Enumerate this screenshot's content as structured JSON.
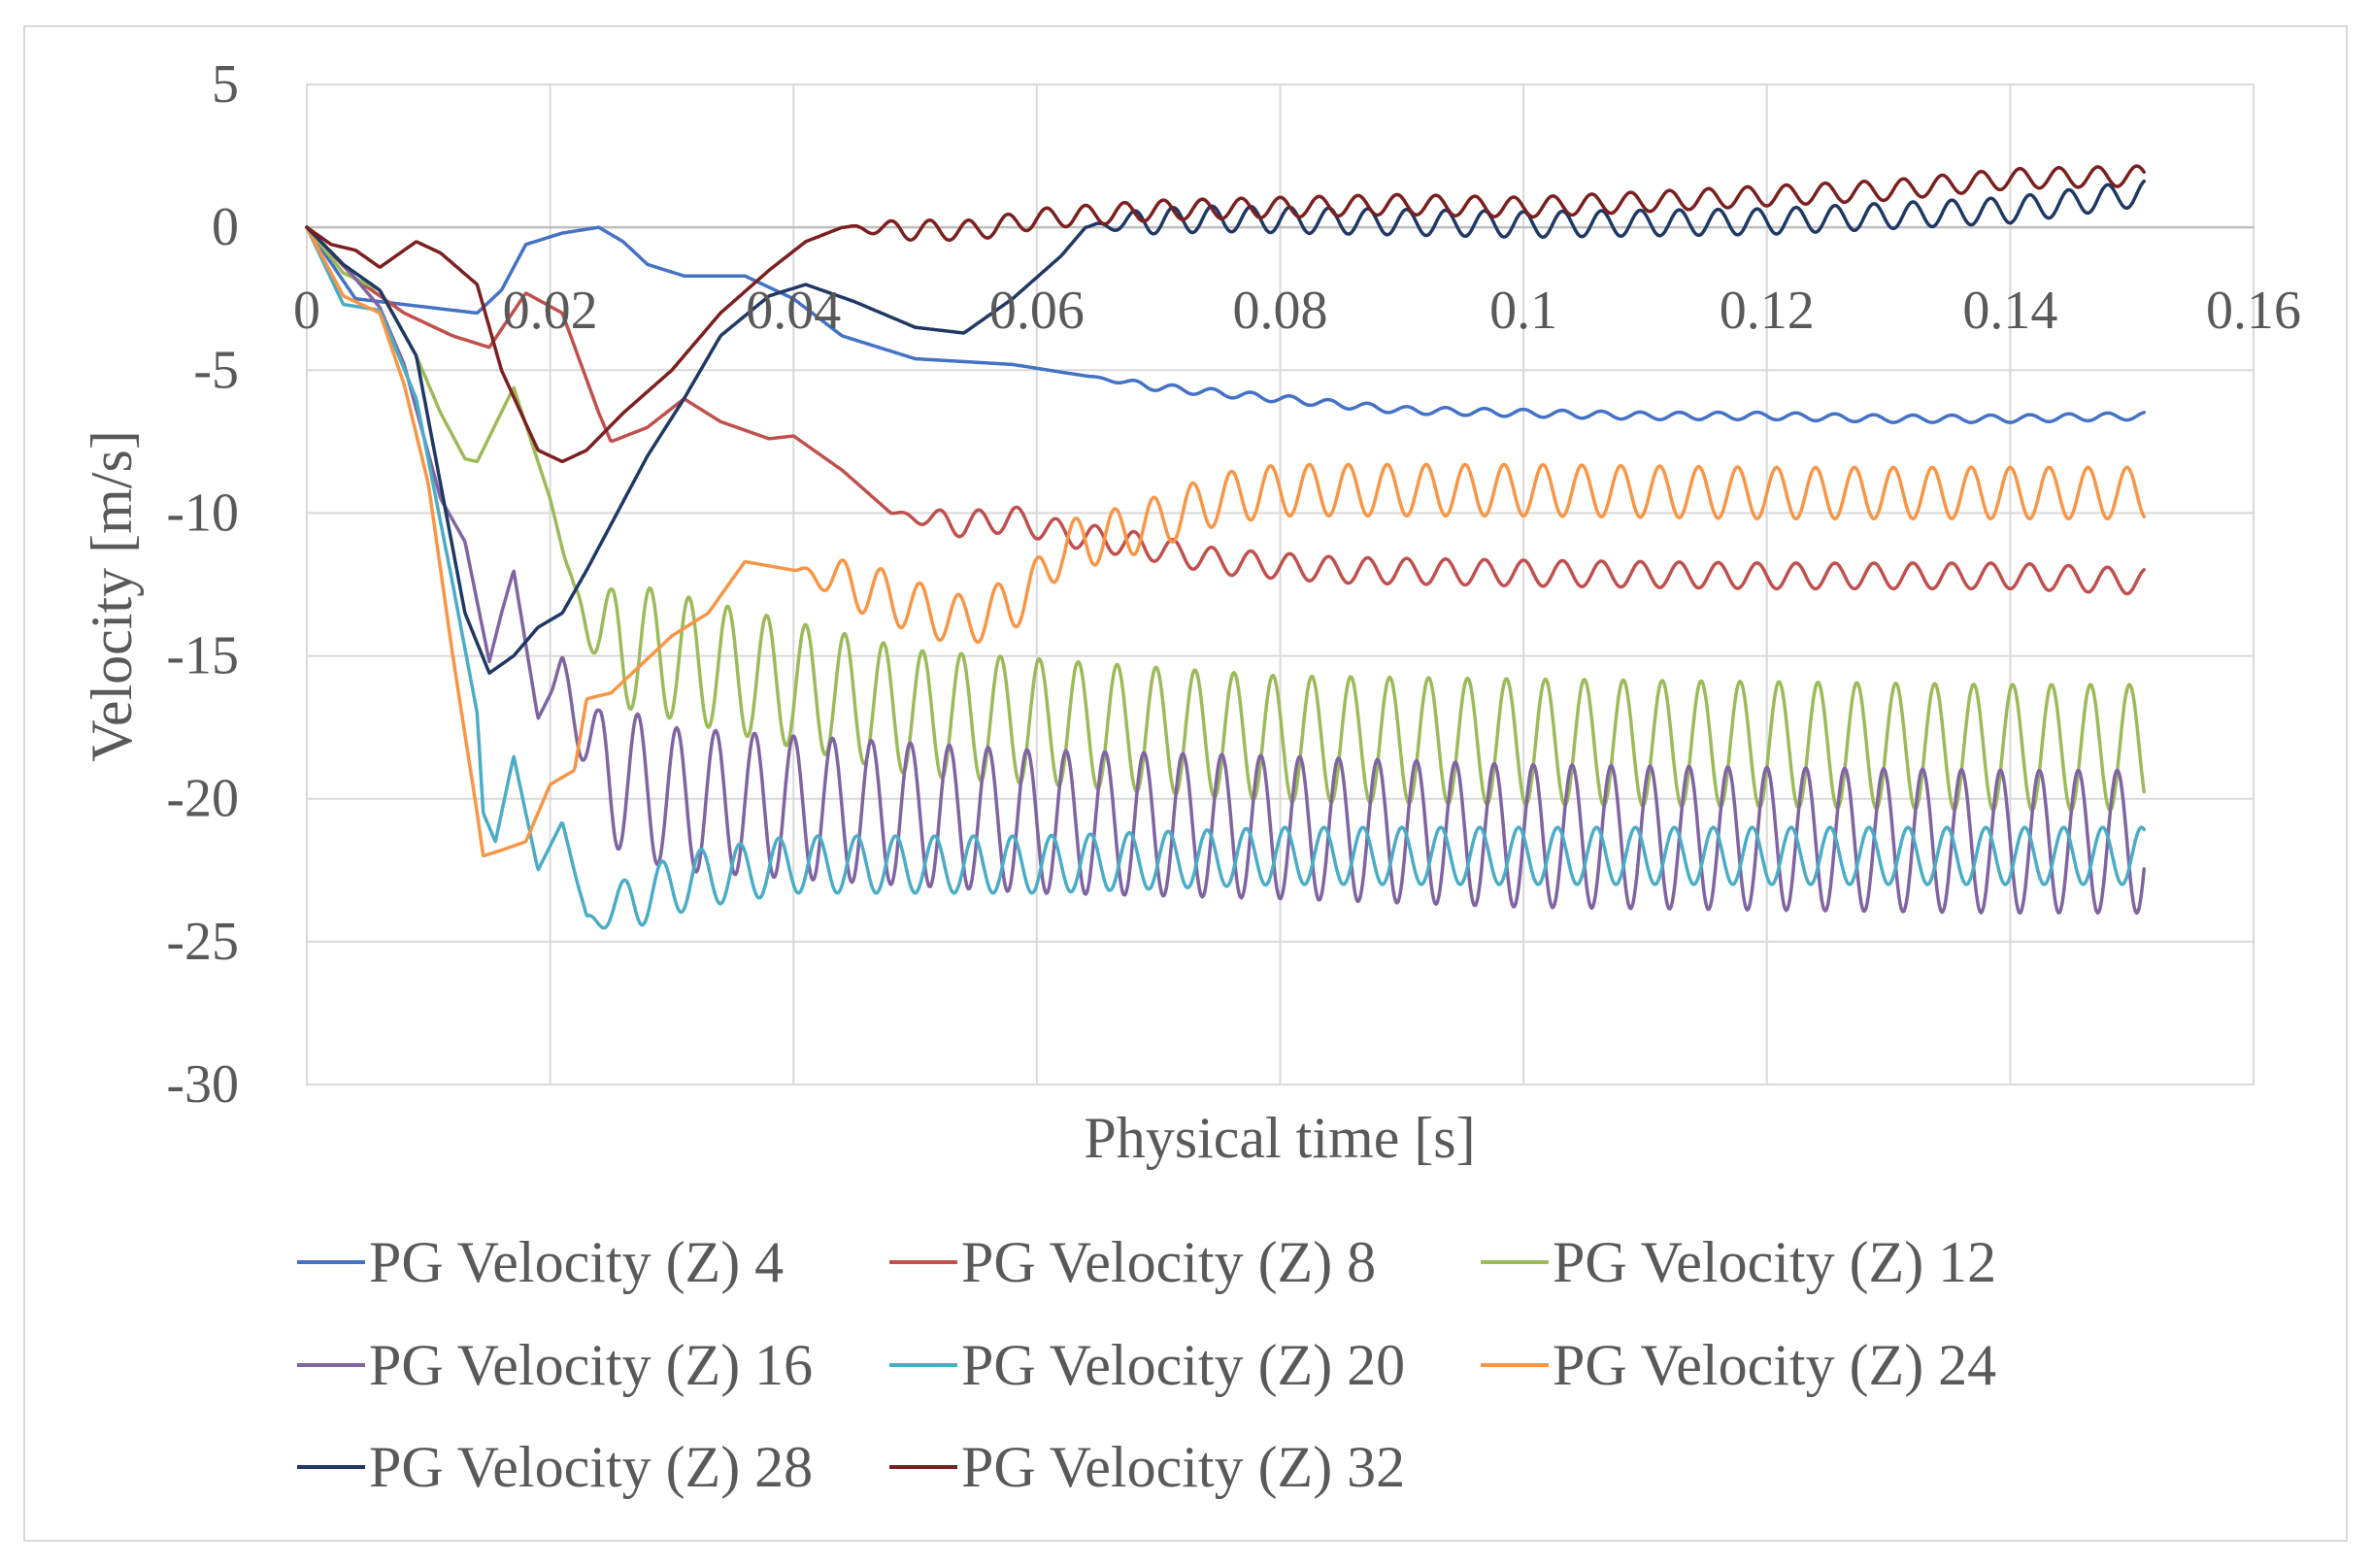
{
  "chart_data": {
    "type": "line",
    "title": "",
    "xlabel": "Physical time [s]",
    "ylabel": "Velocity [m/s]",
    "xlim": [
      0,
      0.16
    ],
    "ylim": [
      -30,
      5
    ],
    "xticks": [
      0,
      0.02,
      0.04,
      0.06,
      0.08,
      0.1,
      0.12,
      0.14,
      0.16
    ],
    "xtick_labels": [
      "0",
      "0.02",
      "0.04",
      "0.06",
      "0.08",
      "0.1",
      "0.12",
      "0.14",
      "0.16"
    ],
    "yticks": [
      5,
      0,
      -5,
      -10,
      -15,
      -20,
      -25,
      -30
    ],
    "ytick_labels": [
      "5",
      "0",
      "-5",
      "-10",
      "-15",
      "-20",
      "-25",
      "-30"
    ],
    "grid": true,
    "legend_position": "bottom",
    "series": [
      {
        "name": "PG Velocity (Z) 4",
        "color": "#4472C4",
        "keypoints": [
          [
            0,
            0
          ],
          [
            0.004,
            -2.5
          ],
          [
            0.008,
            -2.7
          ],
          [
            0.012,
            -2.9
          ],
          [
            0.014,
            -3.0
          ],
          [
            0.016,
            -2.2
          ],
          [
            0.018,
            -0.6
          ],
          [
            0.021,
            -0.2
          ],
          [
            0.024,
            0
          ],
          [
            0.026,
            -0.5
          ],
          [
            0.028,
            -1.3
          ],
          [
            0.031,
            -1.7
          ],
          [
            0.036,
            -1.7
          ],
          [
            0.04,
            -2.5
          ],
          [
            0.044,
            -3.8
          ],
          [
            0.05,
            -4.6
          ],
          [
            0.058,
            -4.8
          ],
          [
            0.064,
            -5.2
          ],
          [
            0.07,
            -5.6
          ],
          [
            0.08,
            -6.0
          ],
          [
            0.09,
            -6.4
          ],
          [
            0.1,
            -6.5
          ],
          [
            0.11,
            -6.6
          ],
          [
            0.12,
            -6.6
          ],
          [
            0.13,
            -6.7
          ],
          [
            0.14,
            -6.7
          ],
          [
            0.151,
            -6.6
          ]
        ],
        "oscillation": {
          "start": 0.064,
          "period": 0.0032,
          "amplitude": 0.13
        }
      },
      {
        "name": "PG Velocity (Z) 8",
        "color": "#C0504D",
        "keypoints": [
          [
            0,
            0
          ],
          [
            0.004,
            -1.8
          ],
          [
            0.008,
            -3.0
          ],
          [
            0.012,
            -3.8
          ],
          [
            0.015,
            -4.2
          ],
          [
            0.018,
            -2.3
          ],
          [
            0.021,
            -3.0
          ],
          [
            0.024,
            -6.5
          ],
          [
            0.025,
            -7.5
          ],
          [
            0.028,
            -7.0
          ],
          [
            0.031,
            -6.0
          ],
          [
            0.034,
            -6.8
          ],
          [
            0.038,
            -7.4
          ],
          [
            0.04,
            -7.3
          ],
          [
            0.044,
            -8.5
          ],
          [
            0.048,
            -10.0
          ],
          [
            0.054,
            -10.4
          ],
          [
            0.058,
            -10.2
          ],
          [
            0.062,
            -10.7
          ],
          [
            0.068,
            -11.1
          ],
          [
            0.075,
            -11.7
          ],
          [
            0.085,
            -12.0
          ],
          [
            0.1,
            -12.1
          ],
          [
            0.12,
            -12.2
          ],
          [
            0.14,
            -12.2
          ],
          [
            0.151,
            -12.4
          ]
        ],
        "oscillation": {
          "start": 0.048,
          "period": 0.0032,
          "amplitude": 0.45
        }
      },
      {
        "name": "PG Velocity (Z) 12",
        "color": "#9BBB59",
        "keypoints": [
          [
            0,
            0
          ],
          [
            0.003,
            -1.6
          ],
          [
            0.006,
            -2.2
          ],
          [
            0.009,
            -4.5
          ],
          [
            0.011,
            -6.5
          ],
          [
            0.013,
            -8.1
          ],
          [
            0.014,
            -8.2
          ],
          [
            0.017,
            -5.6
          ],
          [
            0.02,
            -9.5
          ],
          [
            0.022,
            -13.0
          ],
          [
            0.025,
            -14.5
          ],
          [
            0.03,
            -15.0
          ],
          [
            0.035,
            -15.5
          ],
          [
            0.04,
            -16.0
          ],
          [
            0.05,
            -17.0
          ],
          [
            0.06,
            -17.3
          ],
          [
            0.07,
            -17.6
          ],
          [
            0.08,
            -17.9
          ],
          [
            0.1,
            -18.0
          ],
          [
            0.12,
            -18.1
          ],
          [
            0.14,
            -18.2
          ],
          [
            0.151,
            -18.2
          ]
        ],
        "oscillation": {
          "start": 0.021,
          "period": 0.0032,
          "amplitude": 2.2
        }
      },
      {
        "name": "PG Velocity (Z) 16",
        "color": "#8064A2",
        "keypoints": [
          [
            0,
            0
          ],
          [
            0.003,
            -1.3
          ],
          [
            0.006,
            -2.8
          ],
          [
            0.008,
            -4.8
          ],
          [
            0.011,
            -9.5
          ],
          [
            0.013,
            -11.0
          ],
          [
            0.015,
            -15.2
          ],
          [
            0.016,
            -13.5
          ],
          [
            0.017,
            -12.0
          ],
          [
            0.019,
            -17.2
          ],
          [
            0.021,
            -15.5
          ],
          [
            0.024,
            -19.0
          ],
          [
            0.03,
            -20.0
          ],
          [
            0.04,
            -20.3
          ],
          [
            0.06,
            -20.8
          ],
          [
            0.08,
            -21.0
          ],
          [
            0.1,
            -21.3
          ],
          [
            0.12,
            -21.4
          ],
          [
            0.14,
            -21.5
          ],
          [
            0.151,
            -21.5
          ]
        ],
        "oscillation": {
          "start": 0.02,
          "period": 0.0032,
          "amplitude": 2.5
        }
      },
      {
        "name": "PG Velocity (Z) 20",
        "color": "#4BACC6",
        "keypoints": [
          [
            0,
            0
          ],
          [
            0.003,
            -2.7
          ],
          [
            0.006,
            -2.9
          ],
          [
            0.009,
            -6.0
          ],
          [
            0.012,
            -12.5
          ],
          [
            0.014,
            -17.0
          ],
          [
            0.0145,
            -20.5
          ],
          [
            0.0155,
            -21.5
          ],
          [
            0.017,
            -18.5
          ],
          [
            0.019,
            -22.5
          ],
          [
            0.021,
            -20.8
          ],
          [
            0.023,
            -24.3
          ],
          [
            0.027,
            -23.5
          ],
          [
            0.032,
            -22.8
          ],
          [
            0.04,
            -22.3
          ],
          [
            0.06,
            -22.3
          ],
          [
            0.08,
            -22.0
          ],
          [
            0.1,
            -22.0
          ],
          [
            0.12,
            -22.0
          ],
          [
            0.14,
            -22.0
          ],
          [
            0.151,
            -22.0
          ]
        ],
        "oscillation": {
          "start": 0.022,
          "period": 0.0032,
          "amplitude": 1.0
        }
      },
      {
        "name": "PG Velocity (Z) 24",
        "color": "#F79646",
        "keypoints": [
          [
            0,
            0
          ],
          [
            0.003,
            -2.4
          ],
          [
            0.006,
            -3.0
          ],
          [
            0.008,
            -5.5
          ],
          [
            0.01,
            -9.0
          ],
          [
            0.012,
            -15.0
          ],
          [
            0.014,
            -20.5
          ],
          [
            0.0145,
            -22.0
          ],
          [
            0.016,
            -21.8
          ],
          [
            0.018,
            -21.5
          ],
          [
            0.02,
            -19.5
          ],
          [
            0.022,
            -19.0
          ],
          [
            0.023,
            -16.5
          ],
          [
            0.025,
            -16.3
          ],
          [
            0.027,
            -15.5
          ],
          [
            0.03,
            -14.3
          ],
          [
            0.033,
            -13.5
          ],
          [
            0.036,
            -11.7
          ],
          [
            0.04,
            -12.0
          ],
          [
            0.045,
            -12.5
          ],
          [
            0.05,
            -13.3
          ],
          [
            0.054,
            -13.8
          ],
          [
            0.058,
            -13.2
          ],
          [
            0.06,
            -12.5
          ],
          [
            0.062,
            -11.2
          ],
          [
            0.066,
            -10.8
          ],
          [
            0.07,
            -10.3
          ],
          [
            0.075,
            -9.5
          ],
          [
            0.08,
            -9.2
          ],
          [
            0.1,
            -9.2
          ],
          [
            0.12,
            -9.3
          ],
          [
            0.14,
            -9.3
          ],
          [
            0.151,
            -9.3
          ]
        ],
        "oscillation": {
          "start": 0.04,
          "period": 0.0032,
          "amplitude": 0.9
        }
      },
      {
        "name": "PG Velocity (Z) 28",
        "color": "#1F3864",
        "keypoints": [
          [
            0,
            0
          ],
          [
            0.003,
            -1.3
          ],
          [
            0.006,
            -2.2
          ],
          [
            0.009,
            -4.5
          ],
          [
            0.011,
            -9.0
          ],
          [
            0.013,
            -13.5
          ],
          [
            0.015,
            -15.6
          ],
          [
            0.017,
            -15.0
          ],
          [
            0.019,
            -14.0
          ],
          [
            0.021,
            -13.5
          ],
          [
            0.023,
            -12.0
          ],
          [
            0.025,
            -10.4
          ],
          [
            0.028,
            -8.0
          ],
          [
            0.031,
            -6.0
          ],
          [
            0.034,
            -3.8
          ],
          [
            0.038,
            -2.4
          ],
          [
            0.041,
            -2.0
          ],
          [
            0.045,
            -2.6
          ],
          [
            0.05,
            -3.5
          ],
          [
            0.054,
            -3.7
          ],
          [
            0.058,
            -2.5
          ],
          [
            0.062,
            -1.0
          ],
          [
            0.064,
            0
          ],
          [
            0.068,
            0.2
          ],
          [
            0.075,
            0.3
          ],
          [
            0.1,
            0.1
          ],
          [
            0.12,
            0.2
          ],
          [
            0.14,
            0.6
          ],
          [
            0.151,
            1.2
          ]
        ],
        "oscillation": {
          "start": 0.064,
          "period": 0.0032,
          "amplitude": 0.45
        }
      },
      {
        "name": "PG Velocity (Z) 32",
        "color": "#7B1F1F",
        "keypoints": [
          [
            0,
            0
          ],
          [
            0.002,
            -0.6
          ],
          [
            0.004,
            -0.8
          ],
          [
            0.006,
            -1.4
          ],
          [
            0.009,
            -0.5
          ],
          [
            0.011,
            -0.9
          ],
          [
            0.014,
            -2.0
          ],
          [
            0.016,
            -5.0
          ],
          [
            0.019,
            -7.8
          ],
          [
            0.021,
            -8.2
          ],
          [
            0.023,
            -7.8
          ],
          [
            0.026,
            -6.5
          ],
          [
            0.03,
            -5.0
          ],
          [
            0.034,
            -3.0
          ],
          [
            0.038,
            -1.5
          ],
          [
            0.041,
            -0.5
          ],
          [
            0.044,
            0
          ],
          [
            0.05,
            -0.1
          ],
          [
            0.055,
            -0.1
          ],
          [
            0.06,
            0.3
          ],
          [
            0.07,
            0.6
          ],
          [
            0.08,
            0.7
          ],
          [
            0.09,
            0.8
          ],
          [
            0.1,
            0.7
          ],
          [
            0.11,
            0.9
          ],
          [
            0.12,
            1.1
          ],
          [
            0.13,
            1.3
          ],
          [
            0.14,
            1.7
          ],
          [
            0.151,
            1.8
          ]
        ],
        "oscillation": {
          "start": 0.044,
          "period": 0.0032,
          "amplitude": 0.35
        }
      }
    ]
  }
}
